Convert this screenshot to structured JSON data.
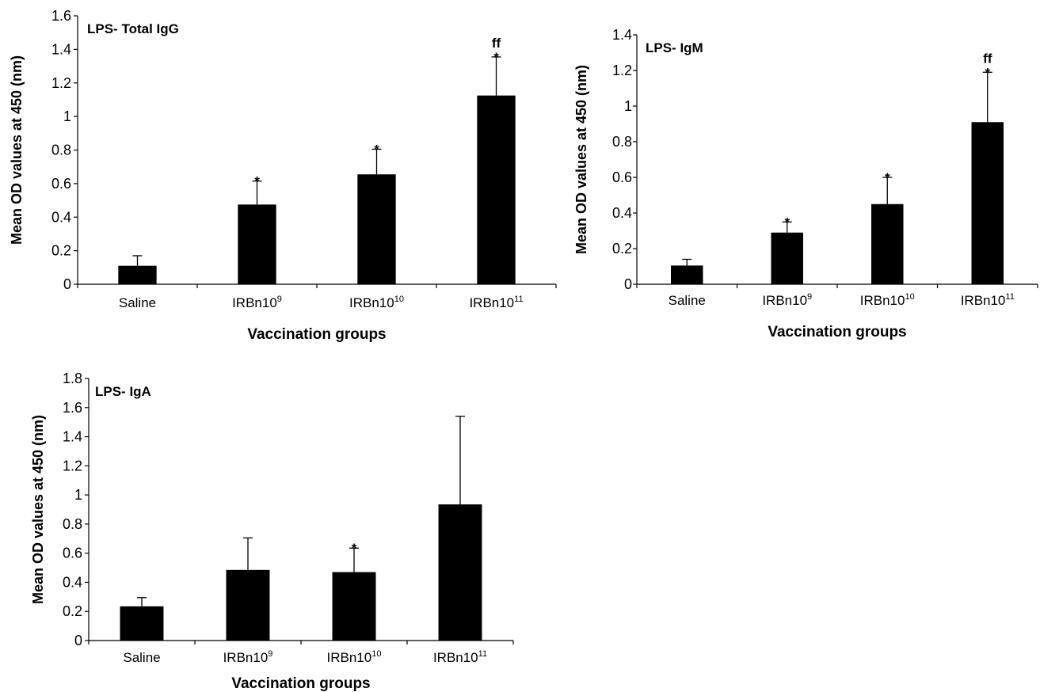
{
  "colors": {
    "bar": "#000000",
    "axis": "#000000"
  },
  "chart_data": [
    {
      "type": "bar",
      "title": "LPS- Total IgG",
      "xlabel": "Vaccination groups",
      "ylabel": "Mean OD values at 450 (nm)",
      "ylim": [
        0,
        1.6
      ],
      "yticks": [
        "0",
        "0.2",
        "0.4",
        "0.6",
        "0.8",
        "1",
        "1.2",
        "1.4",
        "1.6"
      ],
      "grid": false,
      "categories": [
        {
          "base": "Saline",
          "sup": ""
        },
        {
          "base": "IRBn10",
          "sup": "9"
        },
        {
          "base": "IRBn10",
          "sup": "10"
        },
        {
          "base": "IRBn10",
          "sup": "11"
        }
      ],
      "values": [
        0.11,
        0.475,
        0.655,
        1.125
      ],
      "errors": [
        0.06,
        0.14,
        0.15,
        0.23
      ],
      "annotations": [
        [],
        [
          "*"
        ],
        [
          "*"
        ],
        [
          "*",
          "ff"
        ]
      ]
    },
    {
      "type": "bar",
      "title": "LPS- IgM",
      "xlabel": "Vaccination groups",
      "ylabel": "Mean OD values at 450 (nm)",
      "ylim": [
        0,
        1.4
      ],
      "yticks": [
        "0",
        "0.2",
        "0.4",
        "0.6",
        "0.8",
        "1",
        "1.2",
        "1.4"
      ],
      "grid": false,
      "categories": [
        {
          "base": "Saline",
          "sup": ""
        },
        {
          "base": "IRBn10",
          "sup": "9"
        },
        {
          "base": "IRBn10",
          "sup": "10"
        },
        {
          "base": "IRBn10",
          "sup": "11"
        }
      ],
      "values": [
        0.105,
        0.29,
        0.45,
        0.91
      ],
      "errors": [
        0.035,
        0.06,
        0.15,
        0.28
      ],
      "annotations": [
        [],
        [
          "*"
        ],
        [
          "*"
        ],
        [
          "*",
          "ff"
        ]
      ]
    },
    {
      "type": "bar",
      "title": "LPS- IgA",
      "xlabel": "Vaccination groups",
      "ylabel": "Mean OD values at 450 (nm)",
      "ylim": [
        0,
        1.8
      ],
      "yticks": [
        "0",
        "0.2",
        "0.4",
        "0.6",
        "0.8",
        "1",
        "1.2",
        "1.4",
        "1.6",
        "1.8"
      ],
      "grid": false,
      "categories": [
        {
          "base": "Saline",
          "sup": ""
        },
        {
          "base": "IRBn10",
          "sup": "9"
        },
        {
          "base": "IRBn10",
          "sup": "10"
        },
        {
          "base": "IRBn10",
          "sup": "11"
        }
      ],
      "values": [
        0.235,
        0.485,
        0.47,
        0.935
      ],
      "errors": [
        0.06,
        0.22,
        0.165,
        0.605
      ],
      "annotations": [
        [],
        [],
        [
          "*"
        ],
        []
      ]
    }
  ]
}
